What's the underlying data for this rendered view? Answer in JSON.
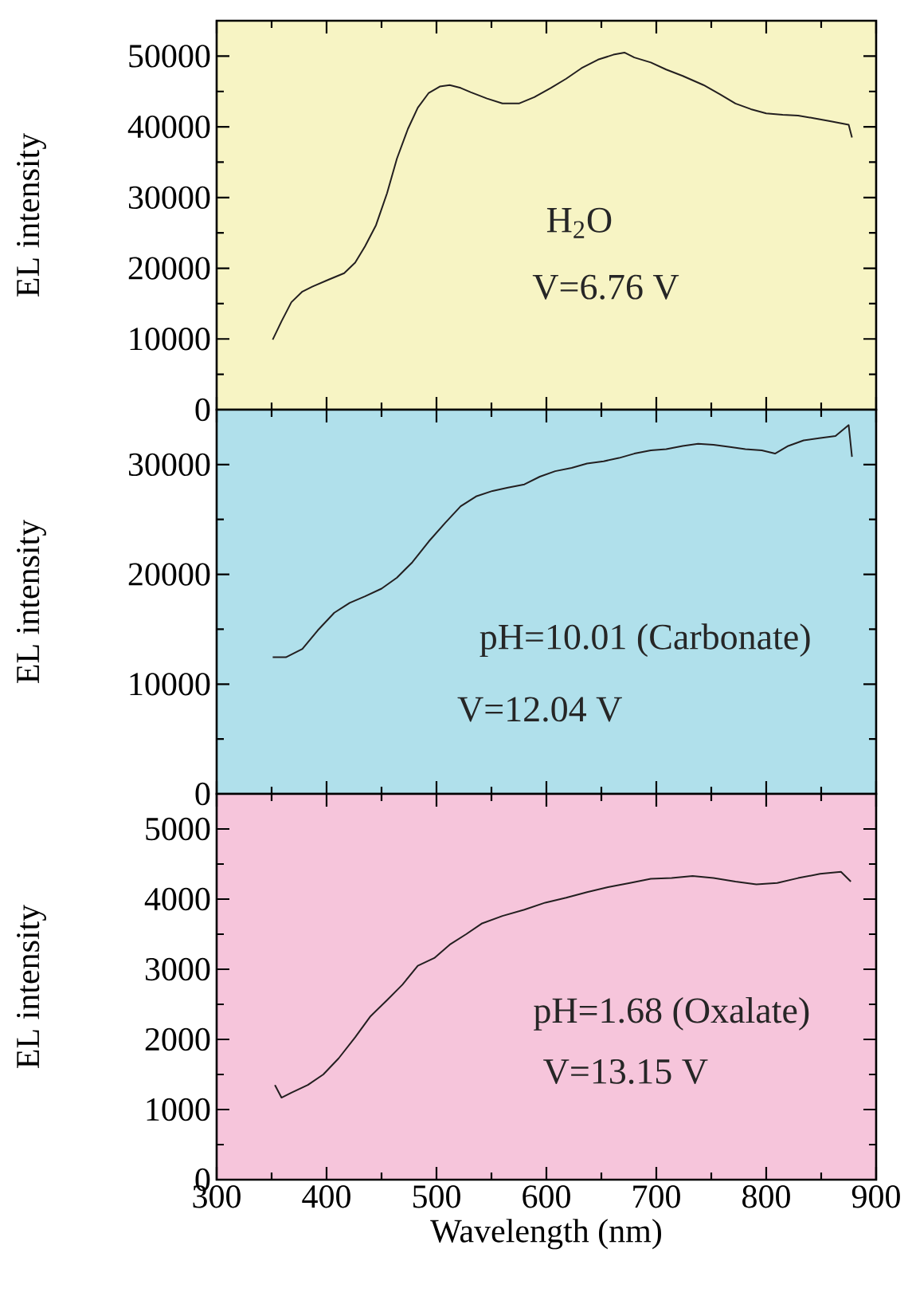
{
  "chart_data": [
    {
      "type": "line",
      "ylabel": "EL intensity",
      "xlim": [
        300,
        900
      ],
      "ylim": [
        0,
        55000
      ],
      "xticks": [
        300,
        400,
        500,
        600,
        700,
        800,
        900
      ],
      "yticks": [
        0,
        10000,
        20000,
        30000,
        40000,
        50000
      ],
      "tick_labels": "y",
      "annotations": [
        "H$_{2}$O",
        "V=6.76 V"
      ],
      "series": [
        {
          "color": "#231f20",
          "x": [
            351,
            359,
            368,
            378,
            387,
            402,
            416,
            426,
            435,
            445,
            455,
            464,
            474,
            483,
            493,
            503,
            512,
            522,
            531,
            546,
            560,
            575,
            589,
            604,
            618,
            632,
            647,
            661,
            671,
            680,
            695,
            709,
            724,
            743,
            758,
            772,
            786,
            800,
            815,
            829,
            844,
            858,
            875,
            878
          ],
          "values": [
            9900,
            12500,
            15200,
            16700,
            17400,
            18400,
            19300,
            20800,
            23100,
            26100,
            30600,
            35500,
            39700,
            42700,
            44800,
            45700,
            45900,
            45500,
            44900,
            44000,
            43300,
            43300,
            44200,
            45500,
            46800,
            48300,
            49500,
            50200,
            50500,
            49800,
            49100,
            48100,
            47200,
            45900,
            44600,
            43300,
            42500,
            41900,
            41700,
            41600,
            41200,
            40800,
            40300,
            38500
          ]
        }
      ]
    },
    {
      "type": "line",
      "ylabel": "EL intensity",
      "xlim": [
        300,
        900
      ],
      "ylim": [
        0,
        35000
      ],
      "xticks": [
        300,
        400,
        500,
        600,
        700,
        800,
        900
      ],
      "yticks": [
        0,
        10000,
        20000,
        30000
      ],
      "tick_labels": "y",
      "annotations": [
        "pH=10.01 (Carbonate)",
        "V=12.04 V"
      ],
      "series": [
        {
          "color": "#231f20",
          "x": [
            351,
            363,
            378,
            392,
            407,
            421,
            435,
            450,
            464,
            478,
            493,
            508,
            522,
            536,
            551,
            565,
            580,
            594,
            608,
            623,
            637,
            652,
            666,
            680,
            695,
            709,
            724,
            738,
            752,
            767,
            781,
            796,
            808,
            820,
            834,
            848,
            863,
            875,
            878
          ],
          "values": [
            12450,
            12450,
            13200,
            14900,
            16500,
            17400,
            18000,
            18700,
            19700,
            21100,
            23000,
            24700,
            26200,
            27100,
            27600,
            27900,
            28200,
            28900,
            29400,
            29700,
            30100,
            30300,
            30600,
            31000,
            31300,
            31400,
            31700,
            31900,
            31800,
            31600,
            31400,
            31300,
            31000,
            31700,
            32200,
            32400,
            32600,
            33600,
            30700
          ]
        }
      ]
    },
    {
      "type": "line",
      "xlabel": "Wavelength (nm)",
      "ylabel": "EL intensity",
      "xlim": [
        300,
        900
      ],
      "ylim": [
        0,
        5500
      ],
      "xticks": [
        300,
        400,
        500,
        600,
        700,
        800,
        900
      ],
      "yticks": [
        0,
        1000,
        2000,
        3000,
        4000,
        5000
      ],
      "annotations": [
        "pH=1.68 (Oxalate)",
        "V=13.15 V"
      ],
      "series": [
        {
          "color": "#231f20",
          "x": [
            353,
            359,
            368,
            383,
            397,
            411,
            426,
            440,
            455,
            469,
            483,
            498,
            512,
            527,
            541,
            560,
            580,
            599,
            618,
            637,
            656,
            676,
            695,
            714,
            733,
            752,
            772,
            791,
            810,
            829,
            849,
            868,
            877
          ],
          "values": [
            1350,
            1170,
            1240,
            1350,
            1500,
            1730,
            2030,
            2330,
            2560,
            2780,
            3050,
            3160,
            3350,
            3500,
            3650,
            3760,
            3850,
            3950,
            4020,
            4100,
            4170,
            4230,
            4290,
            4300,
            4330,
            4300,
            4250,
            4210,
            4230,
            4300,
            4360,
            4390,
            4250
          ]
        }
      ]
    }
  ]
}
